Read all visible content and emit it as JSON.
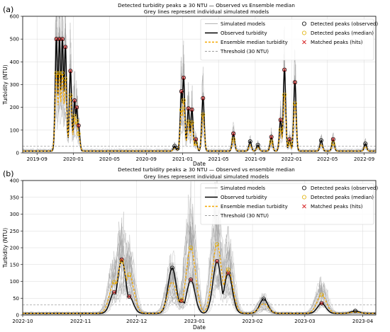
{
  "chart_data": [
    {
      "panel_label": "(a)",
      "type": "line",
      "title": "Detected turbidity peaks ≥ 30 NTU — Observed vs Ensemble median",
      "subtitle": "Grey lines represent individual simulated models",
      "xlabel": "Date",
      "ylabel": "Turbidity (NTU)",
      "xlim": [
        "2019-07-15",
        "2022-10-10"
      ],
      "ylim": [
        0,
        600
      ],
      "xticks": [
        "2019-09",
        "2020-01",
        "2020-05",
        "2020-09",
        "2021-01",
        "2021-05",
        "2021-09",
        "2022-01",
        "2022-05",
        "2022-09"
      ],
      "yticks": [
        0,
        100,
        200,
        300,
        400,
        500,
        600
      ],
      "grid": true,
      "legend_position": "top-right",
      "legend": [
        "Simulated models",
        "Observed turbidity",
        "Ensemble median turbidity",
        "Threshold (30 NTU)",
        "Detected peaks (observed)",
        "Detected peaks (median)",
        "Matched peaks (hits)"
      ],
      "threshold": 30,
      "colors": {
        "simulated": "#b4b4b4",
        "observed": "#000000",
        "median": "#f5a800",
        "threshold": "#999999",
        "peak_observed": "#000000",
        "peak_median": "#e0b000",
        "matched": "#d62728"
      },
      "observed_peaks": [
        {
          "date": "2019-11-05",
          "value": 500
        },
        {
          "date": "2019-11-15",
          "value": 500
        },
        {
          "date": "2019-11-25",
          "value": 500
        },
        {
          "date": "2019-12-05",
          "value": 465
        },
        {
          "date": "2019-12-22",
          "value": 360
        },
        {
          "date": "2020-01-05",
          "value": 230
        },
        {
          "date": "2020-01-12",
          "value": 200
        },
        {
          "date": "2020-01-18",
          "value": 120
        },
        {
          "date": "2020-12-05",
          "value": 30
        },
        {
          "date": "2020-12-15",
          "value": 20
        },
        {
          "date": "2020-12-28",
          "value": 270
        },
        {
          "date": "2021-01-04",
          "value": 330
        },
        {
          "date": "2021-01-20",
          "value": 195
        },
        {
          "date": "2021-02-01",
          "value": 190
        },
        {
          "date": "2021-02-14",
          "value": 60
        },
        {
          "date": "2021-03-10",
          "value": 240
        },
        {
          "date": "2021-06-20",
          "value": 85
        },
        {
          "date": "2021-08-15",
          "value": 50
        },
        {
          "date": "2021-09-10",
          "value": 35
        },
        {
          "date": "2021-10-25",
          "value": 70
        },
        {
          "date": "2021-11-25",
          "value": 145
        },
        {
          "date": "2021-12-08",
          "value": 365
        },
        {
          "date": "2021-12-25",
          "value": 60
        },
        {
          "date": "2022-01-12",
          "value": 310
        },
        {
          "date": "2022-04-10",
          "value": 55
        },
        {
          "date": "2022-05-20",
          "value": 60
        },
        {
          "date": "2022-09-05",
          "value": 40
        }
      ]
    },
    {
      "panel_label": "(b)",
      "type": "line",
      "title": "Detected turbidity peaks ≥ 30 NTU — Observed vs ensemble median",
      "subtitle": "Grey lines represent individual simulated models",
      "xlabel": "Date",
      "ylabel": "Turbidity (NTU)",
      "xlim": [
        "2022-10-01",
        "2023-04-08"
      ],
      "ylim": [
        0,
        400
      ],
      "xticks": [
        "2022-10",
        "2022-11",
        "2022-12",
        "2023-01",
        "2023-02",
        "2023-03",
        "2023-04"
      ],
      "yticks": [
        0,
        50,
        100,
        150,
        200,
        250,
        300,
        350,
        400
      ],
      "grid": true,
      "legend_position": "top-right",
      "legend": [
        "Simulated models",
        "Observed turbidity",
        "Ensemble median turbidity",
        "Threshold (30 NTU)",
        "Detected peaks (observed)",
        "Detected peaks (median)",
        "Matched peaks (hits)"
      ],
      "threshold": 30,
      "observed_peaks": [
        {
          "date": "2022-11-19",
          "value": 68
        },
        {
          "date": "2022-11-23",
          "value": 165
        },
        {
          "date": "2022-11-27",
          "value": 55
        },
        {
          "date": "2022-12-20",
          "value": 140
        },
        {
          "date": "2022-12-25",
          "value": 42
        },
        {
          "date": "2022-12-30",
          "value": 105
        },
        {
          "date": "2023-01-13",
          "value": 160
        },
        {
          "date": "2023-01-19",
          "value": 125
        },
        {
          "date": "2023-02-07",
          "value": 48
        },
        {
          "date": "2023-03-10",
          "value": 35
        },
        {
          "date": "2023-03-28",
          "value": 12
        }
      ],
      "median_peaks": [
        {
          "date": "2022-11-19",
          "value": 98
        },
        {
          "date": "2022-11-23",
          "value": 160
        },
        {
          "date": "2022-11-27",
          "value": 120
        },
        {
          "date": "2022-12-25",
          "value": 45
        },
        {
          "date": "2022-12-30",
          "value": 200
        },
        {
          "date": "2023-01-13",
          "value": 210
        },
        {
          "date": "2023-01-19",
          "value": 135
        },
        {
          "date": "2023-03-10",
          "value": 60
        }
      ]
    }
  ]
}
